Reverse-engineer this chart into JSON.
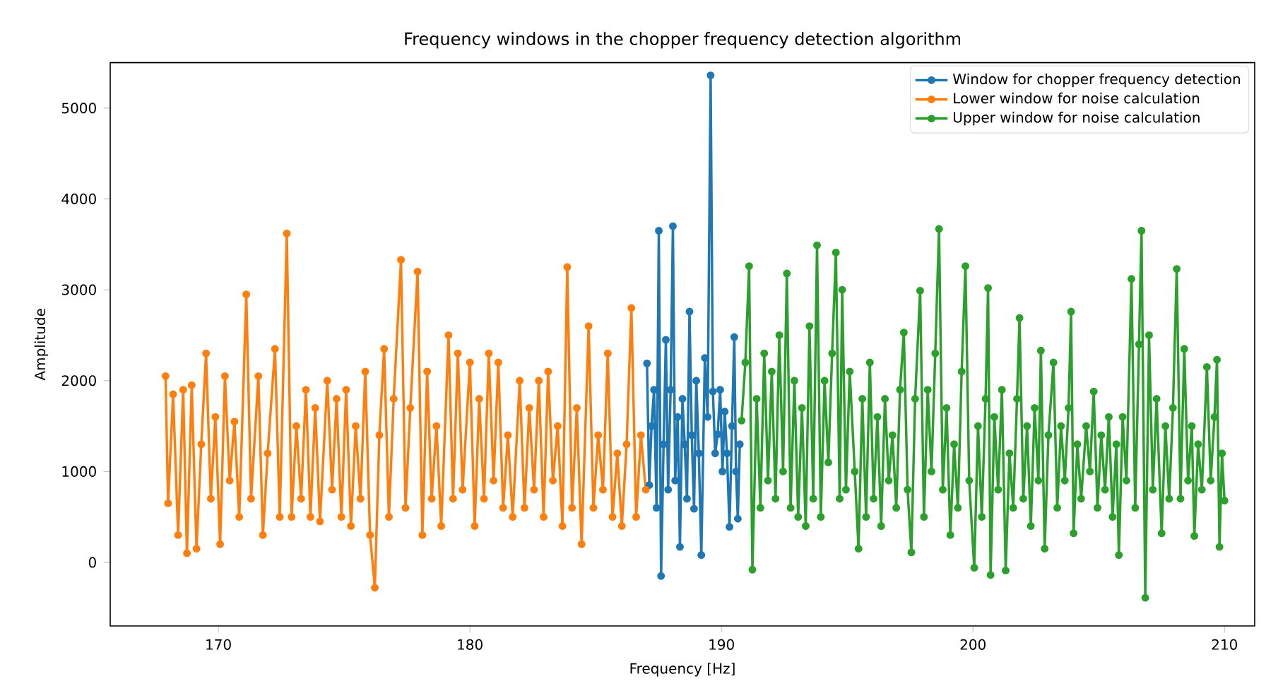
{
  "chart_data": {
    "type": "line",
    "title": "Frequency windows in the chopper frequency detection algorithm",
    "xlabel": "Frequency [Hz]",
    "ylabel": "Amplitude",
    "xlim": [
      165.7,
      211.2
    ],
    "ylim": [
      -700,
      5500
    ],
    "xticks": [
      170,
      180,
      190,
      200,
      210
    ],
    "yticks": [
      0,
      1000,
      2000,
      3000,
      4000,
      5000
    ],
    "legend": "top right",
    "marker": "circle",
    "line_style": "solid",
    "grid": false,
    "series": [
      {
        "name": "Window for chopper frequency detection",
        "color": "#1f77b4",
        "x": [
          187.04,
          187.13,
          187.22,
          187.32,
          187.42,
          187.51,
          187.6,
          187.7,
          187.79,
          187.88,
          187.98,
          188.07,
          188.16,
          188.26,
          188.35,
          188.45,
          188.54,
          188.63,
          188.73,
          188.82,
          188.91,
          189.0,
          189.1,
          189.2,
          189.34,
          189.45,
          189.57,
          189.66,
          189.75,
          189.85,
          189.95,
          190.04,
          190.13,
          190.22,
          190.32,
          190.42,
          190.51,
          190.58,
          190.65,
          190.73
        ],
        "values": [
          2190,
          850,
          1500,
          1900,
          600,
          3650,
          -150,
          1300,
          2450,
          800,
          1900,
          3700,
          900,
          1600,
          170,
          1800,
          1300,
          700,
          2760,
          1400,
          590,
          2000,
          1200,
          80,
          2250,
          1600,
          5360,
          1880,
          1200,
          1410,
          1900,
          1000,
          1660,
          1200,
          390,
          1500,
          2480,
          1000,
          480,
          1300
        ]
      },
      {
        "name": "Lower window for noise calculation",
        "color": "#ff7f0e",
        "x": [
          167.9,
          168.0,
          168.2,
          168.4,
          168.6,
          168.75,
          168.94,
          169.13,
          169.32,
          169.51,
          169.7,
          169.88,
          170.07,
          170.26,
          170.45,
          170.64,
          170.83,
          171.11,
          171.3,
          171.59,
          171.77,
          171.96,
          172.25,
          172.44,
          172.72,
          172.91,
          173.1,
          173.29,
          173.48,
          173.66,
          173.85,
          174.04,
          174.33,
          174.52,
          174.7,
          174.89,
          175.08,
          175.27,
          175.46,
          175.65,
          175.84,
          176.03,
          176.22,
          176.4,
          176.59,
          176.78,
          176.97,
          177.26,
          177.44,
          177.63,
          177.92,
          178.11,
          178.3,
          178.48,
          178.67,
          178.86,
          179.15,
          179.33,
          179.52,
          179.71,
          180.0,
          180.19,
          180.37,
          180.56,
          180.75,
          180.94,
          181.13,
          181.32,
          181.51,
          181.7,
          181.98,
          182.17,
          182.36,
          182.55,
          182.74,
          182.93,
          183.11,
          183.3,
          183.49,
          183.68,
          183.87,
          184.06,
          184.25,
          184.44,
          184.72,
          184.91,
          185.1,
          185.29,
          185.48,
          185.67,
          185.86,
          186.04,
          186.23,
          186.42,
          186.61,
          186.8,
          186.99
        ],
        "values": [
          2050,
          650,
          1850,
          300,
          1900,
          100,
          1950,
          150,
          1300,
          2300,
          700,
          1600,
          200,
          2050,
          900,
          1550,
          500,
          2950,
          700,
          2050,
          300,
          1200,
          2350,
          500,
          3620,
          500,
          1500,
          700,
          1900,
          500,
          1700,
          450,
          2000,
          800,
          1800,
          500,
          1900,
          400,
          1500,
          700,
          2100,
          300,
          -280,
          1400,
          2350,
          500,
          1800,
          3330,
          600,
          1700,
          3200,
          300,
          2100,
          700,
          1500,
          400,
          2500,
          700,
          2300,
          800,
          2200,
          400,
          1800,
          700,
          2300,
          900,
          2200,
          600,
          1400,
          500,
          2000,
          600,
          1700,
          800,
          2000,
          500,
          2100,
          900,
          1500,
          400,
          3250,
          600,
          1700,
          200,
          2600,
          600,
          1400,
          800,
          2300,
          500,
          1200,
          400,
          1300,
          2800,
          500,
          1400,
          800
        ]
      },
      {
        "name": "Upper window for noise calculation",
        "color": "#2ca02c",
        "x": [
          190.8,
          190.95,
          191.1,
          191.23,
          191.4,
          191.55,
          191.7,
          191.85,
          192.0,
          192.15,
          192.3,
          192.45,
          192.6,
          192.75,
          192.9,
          193.05,
          193.2,
          193.35,
          193.5,
          193.65,
          193.8,
          193.95,
          194.1,
          194.25,
          194.4,
          194.55,
          194.7,
          194.8,
          194.95,
          195.1,
          195.3,
          195.45,
          195.6,
          195.75,
          195.9,
          196.05,
          196.2,
          196.35,
          196.5,
          196.65,
          196.8,
          196.95,
          197.1,
          197.25,
          197.4,
          197.55,
          197.7,
          197.9,
          198.05,
          198.2,
          198.35,
          198.5,
          198.65,
          198.8,
          198.95,
          199.1,
          199.25,
          199.4,
          199.55,
          199.7,
          199.85,
          200.05,
          200.2,
          200.35,
          200.5,
          200.6,
          200.7,
          200.85,
          201.0,
          201.15,
          201.3,
          201.45,
          201.6,
          201.75,
          201.85,
          202.0,
          202.15,
          202.3,
          202.45,
          202.6,
          202.7,
          202.85,
          203.0,
          203.2,
          203.35,
          203.5,
          203.65,
          203.8,
          203.9,
          204.0,
          204.15,
          204.3,
          204.5,
          204.65,
          204.8,
          204.95,
          205.1,
          205.25,
          205.4,
          205.55,
          205.7,
          205.8,
          205.95,
          206.1,
          206.3,
          206.45,
          206.6,
          206.7,
          206.85,
          207.0,
          207.15,
          207.3,
          207.5,
          207.65,
          207.8,
          207.95,
          208.1,
          208.25,
          208.4,
          208.55,
          208.7,
          208.8,
          208.95,
          209.1,
          209.3,
          209.45,
          209.6,
          209.7,
          209.8,
          209.9,
          210.0
        ],
        "values": [
          1560,
          2200,
          3260,
          -80,
          1800,
          600,
          2300,
          900,
          2100,
          700,
          2500,
          1000,
          3180,
          600,
          2000,
          500,
          1700,
          400,
          2600,
          700,
          3490,
          500,
          2000,
          1100,
          2300,
          3410,
          700,
          3000,
          800,
          2100,
          1000,
          150,
          1800,
          500,
          2200,
          700,
          1600,
          400,
          1800,
          900,
          1400,
          600,
          1900,
          2530,
          800,
          110,
          1800,
          2990,
          500,
          1900,
          1000,
          2300,
          3670,
          800,
          1700,
          300,
          1300,
          600,
          2100,
          3260,
          900,
          -60,
          1500,
          500,
          1800,
          3020,
          -140,
          1600,
          800,
          1900,
          -90,
          1200,
          600,
          1800,
          2690,
          700,
          1500,
          400,
          1700,
          900,
          2330,
          150,
          1400,
          2200,
          600,
          1500,
          900,
          1700,
          2760,
          320,
          1300,
          700,
          1500,
          1000,
          1880,
          600,
          1400,
          800,
          1600,
          500,
          1300,
          80,
          1600,
          900,
          3120,
          600,
          2400,
          3650,
          -390,
          2500,
          800,
          1800,
          320,
          1500,
          700,
          1700,
          3230,
          700,
          2350,
          900,
          1500,
          290,
          1300,
          800,
          2150,
          900,
          1600,
          2230,
          170,
          1200,
          680
        ]
      }
    ]
  }
}
